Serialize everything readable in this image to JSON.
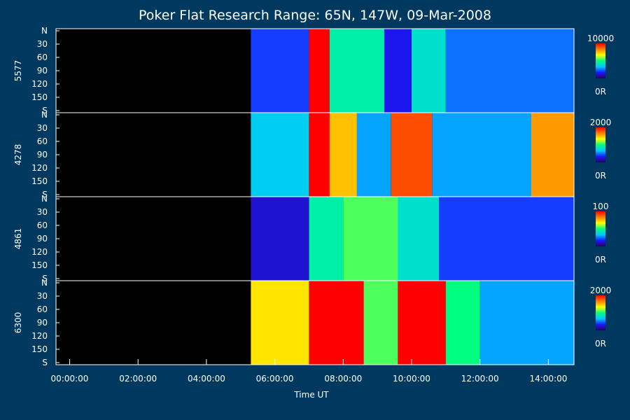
{
  "chart_data": {
    "type": "heatmap",
    "title": "Poker Flat Research Range: 65N, 147W, 09-Mar-2008",
    "xlabel": "Time UT",
    "x_tick_labels": [
      "00:00:00",
      "02:00:00",
      "04:00:00",
      "06:00:00",
      "08:00:00",
      "10:00:00",
      "12:00:00",
      "14:00:00"
    ],
    "x_tick_hours": [
      0,
      2,
      4,
      6,
      8,
      10,
      12,
      14
    ],
    "xlim_hours": [
      -0.4,
      14.75
    ],
    "data_start_hours": 5.3,
    "y_tick_labels": [
      "N",
      "30",
      "60",
      "90",
      "120",
      "150",
      "S"
    ],
    "y_tick_values": [
      0,
      30,
      60,
      90,
      120,
      150,
      180
    ],
    "ylim": [
      0,
      180
    ],
    "colormap": [
      "#2b005f",
      "#1a1aff",
      "#00c8ff",
      "#00ff80",
      "#ffff00",
      "#ff8000",
      "#ff0000"
    ],
    "background_color": "#00395f",
    "panels": [
      {
        "name": "5577",
        "colorbar_max": "10000",
        "colorbar_min": "0R",
        "features": [
          {
            "t0": 5.3,
            "t1": 7.0,
            "level": 0.2
          },
          {
            "t0": 7.0,
            "t1": 7.6,
            "level": 1.0
          },
          {
            "t0": 7.6,
            "t1": 9.2,
            "level": 0.45
          },
          {
            "t0": 9.2,
            "t1": 10.0,
            "level": 0.15
          },
          {
            "t0": 10.0,
            "t1": 11.0,
            "level": 0.4
          },
          {
            "t0": 11.0,
            "t1": 14.75,
            "level": 0.25
          }
        ]
      },
      {
        "name": "4278",
        "colorbar_max": "2000",
        "colorbar_min": "0R",
        "features": [
          {
            "t0": 5.3,
            "t1": 7.0,
            "level": 0.35
          },
          {
            "t0": 7.0,
            "t1": 7.6,
            "level": 1.0
          },
          {
            "t0": 7.6,
            "t1": 8.4,
            "level": 0.75
          },
          {
            "t0": 8.4,
            "t1": 9.4,
            "level": 0.3
          },
          {
            "t0": 9.4,
            "t1": 10.6,
            "level": 0.9
          },
          {
            "t0": 10.6,
            "t1": 13.5,
            "level": 0.3
          },
          {
            "t0": 13.5,
            "t1": 14.75,
            "level": 0.8
          }
        ]
      },
      {
        "name": "4861",
        "colorbar_max": "100",
        "colorbar_min": "0R",
        "features": [
          {
            "t0": 5.3,
            "t1": 7.0,
            "level": 0.12
          },
          {
            "t0": 7.0,
            "t1": 8.0,
            "level": 0.45
          },
          {
            "t0": 8.0,
            "t1": 9.6,
            "level": 0.55
          },
          {
            "t0": 9.6,
            "t1": 10.8,
            "level": 0.4
          },
          {
            "t0": 10.8,
            "t1": 14.75,
            "level": 0.2
          }
        ]
      },
      {
        "name": "6300",
        "colorbar_max": "2000",
        "colorbar_min": "0R",
        "features": [
          {
            "t0": 5.3,
            "t1": 7.0,
            "level": 0.7
          },
          {
            "t0": 7.0,
            "t1": 8.6,
            "level": 1.0
          },
          {
            "t0": 8.6,
            "t1": 9.6,
            "level": 0.55
          },
          {
            "t0": 9.6,
            "t1": 11.0,
            "level": 1.0
          },
          {
            "t0": 11.0,
            "t1": 12.0,
            "level": 0.5
          },
          {
            "t0": 12.0,
            "t1": 14.75,
            "level": 0.3
          }
        ]
      }
    ]
  }
}
